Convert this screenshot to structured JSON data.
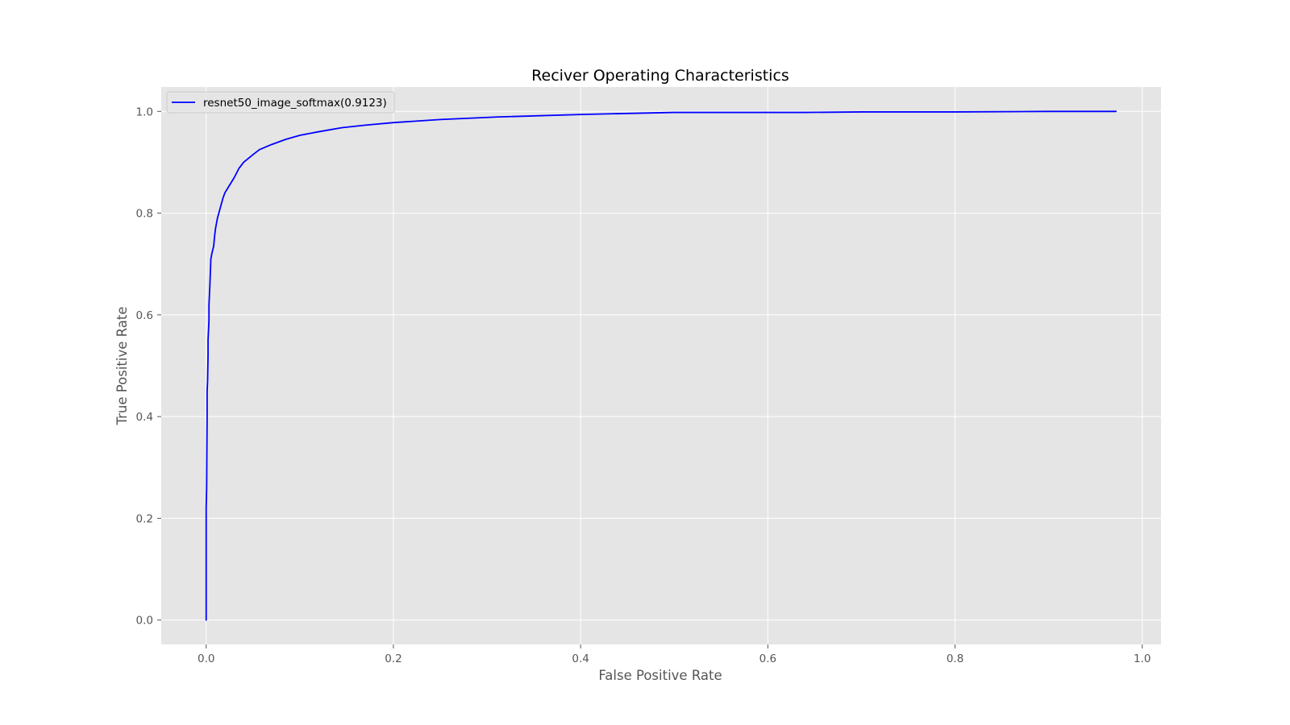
{
  "chart_data": {
    "type": "line",
    "title": "Reciver Operating Characteristics",
    "xlabel": "False Positive Rate",
    "ylabel": "True Positive Rate",
    "xlim": [
      -0.048,
      1.02
    ],
    "ylim": [
      -0.048,
      1.048
    ],
    "xticks": [
      0.0,
      0.2,
      0.4,
      0.6,
      0.8,
      1.0
    ],
    "xtick_labels": [
      "0.0",
      "0.2",
      "0.4",
      "0.6",
      "0.8",
      "1.0"
    ],
    "yticks": [
      0.0,
      0.2,
      0.4,
      0.6,
      0.8,
      1.0
    ],
    "ytick_labels": [
      "0.0",
      "0.2",
      "0.4",
      "0.6",
      "0.8",
      "1.0"
    ],
    "grid": true,
    "legend_position": "upper-left",
    "background_color": "#e5e5e5",
    "grid_color": "#ffffff",
    "series": [
      {
        "name": "resnet50_image_softmax(0.9123)",
        "color": "#0000ff",
        "x": [
          0.0,
          0.0,
          0.0005,
          0.001,
          0.001,
          0.0015,
          0.002,
          0.002,
          0.003,
          0.003,
          0.004,
          0.005,
          0.006,
          0.008,
          0.009,
          0.01,
          0.012,
          0.015,
          0.018,
          0.02,
          0.025,
          0.03,
          0.035,
          0.04,
          0.05,
          0.057,
          0.07,
          0.085,
          0.1,
          0.12,
          0.145,
          0.17,
          0.2,
          0.25,
          0.31,
          0.4,
          0.5,
          0.64,
          0.7,
          0.8,
          0.9,
          0.972
        ],
        "y": [
          0.0,
          0.22,
          0.26,
          0.4,
          0.45,
          0.47,
          0.52,
          0.55,
          0.59,
          0.62,
          0.66,
          0.71,
          0.72,
          0.735,
          0.755,
          0.77,
          0.79,
          0.81,
          0.83,
          0.84,
          0.855,
          0.87,
          0.888,
          0.9,
          0.915,
          0.925,
          0.935,
          0.945,
          0.953,
          0.96,
          0.968,
          0.973,
          0.978,
          0.984,
          0.989,
          0.994,
          0.998,
          0.998,
          0.999,
          0.999,
          1.0,
          1.0
        ]
      }
    ]
  }
}
